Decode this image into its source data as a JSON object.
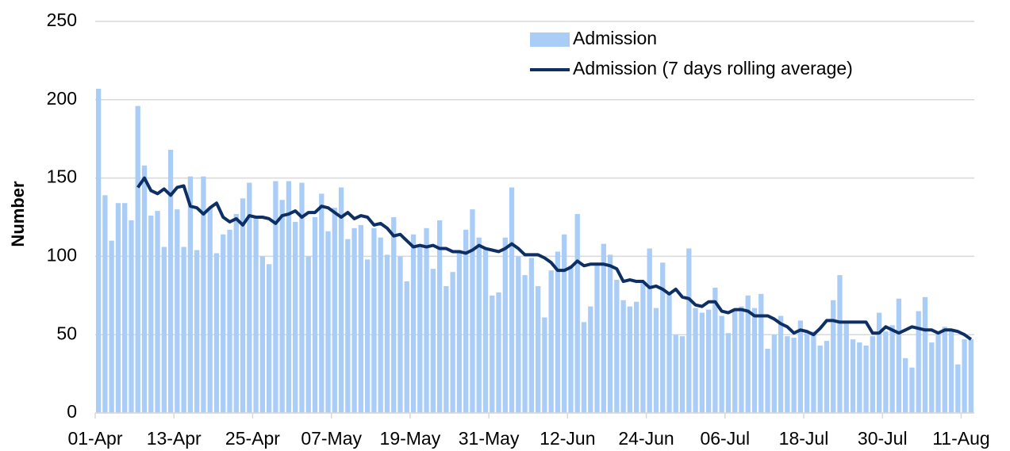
{
  "chart_data": {
    "type": "bar_line",
    "y_label": "Number",
    "categories": [
      "01-Apr",
      null,
      null,
      null,
      null,
      null,
      null,
      null,
      null,
      null,
      null,
      null,
      "13-Apr",
      null,
      null,
      null,
      null,
      null,
      null,
      null,
      null,
      null,
      null,
      null,
      "25-Apr",
      null,
      null,
      null,
      null,
      null,
      null,
      null,
      null,
      null,
      null,
      null,
      "07-May",
      null,
      null,
      null,
      null,
      null,
      null,
      null,
      null,
      null,
      null,
      null,
      "19-May",
      null,
      null,
      null,
      null,
      null,
      null,
      null,
      null,
      null,
      null,
      null,
      "31-May",
      null,
      null,
      null,
      null,
      null,
      null,
      null,
      null,
      null,
      null,
      null,
      "12-Jun",
      null,
      null,
      null,
      null,
      null,
      null,
      null,
      null,
      null,
      null,
      null,
      "24-Jun",
      null,
      null,
      null,
      null,
      null,
      null,
      null,
      null,
      null,
      null,
      null,
      "06-Jul",
      null,
      null,
      null,
      null,
      null,
      null,
      null,
      null,
      null,
      null,
      null,
      "18-Jul",
      null,
      null,
      null,
      null,
      null,
      null,
      null,
      null,
      null,
      null,
      null,
      "30-Jul",
      null,
      null,
      null,
      null,
      null,
      null,
      null,
      null,
      null,
      null,
      null,
      "11-Aug",
      null
    ],
    "series": [
      {
        "name": "Admission",
        "kind": "bar",
        "color": "#a9cdf7",
        "values": [
          207,
          139,
          110,
          134,
          134,
          123,
          196,
          158,
          126,
          129,
          106,
          168,
          130,
          106,
          151,
          104,
          151,
          131,
          102,
          114,
          117,
          127,
          137,
          147,
          125,
          100,
          95,
          148,
          136,
          148,
          122,
          147,
          100,
          125,
          140,
          116,
          131,
          144,
          111,
          118,
          120,
          98,
          118,
          112,
          101,
          125,
          100,
          84,
          114,
          106,
          118,
          92,
          123,
          81,
          90,
          104,
          117,
          130,
          112,
          105,
          75,
          77,
          112,
          144,
          100,
          88,
          99,
          81,
          61,
          91,
          103,
          114,
          94,
          127,
          58,
          68,
          94,
          108,
          101,
          85,
          72,
          68,
          71,
          84,
          105,
          67,
          96,
          76,
          50,
          49,
          105,
          67,
          64,
          66,
          80,
          62,
          51,
          65,
          68,
          75,
          67,
          76,
          41,
          50,
          62,
          49,
          48,
          59,
          51,
          52,
          43,
          46,
          72,
          88,
          57,
          47,
          45,
          43,
          49,
          64,
          52,
          56,
          73,
          35,
          29,
          65,
          74,
          45,
          52,
          55,
          52,
          31,
          47,
          47
        ]
      },
      {
        "name": "Admission (7 days rolling average)",
        "kind": "line",
        "color": "#0d2f63",
        "values": [
          null,
          null,
          null,
          null,
          null,
          null,
          144,
          150,
          142,
          140,
          143,
          139,
          144,
          145,
          132,
          131,
          127,
          131,
          134,
          125,
          122,
          124,
          120,
          126,
          125,
          125,
          124,
          121,
          126,
          127,
          129,
          125,
          128,
          128,
          132,
          131,
          128,
          125,
          128,
          124,
          126,
          125,
          120,
          121,
          118,
          113,
          114,
          110,
          106,
          107,
          106,
          107,
          105,
          105,
          103,
          103,
          102,
          104,
          107,
          105,
          104,
          103,
          105,
          108,
          105,
          101,
          101,
          101,
          99,
          96,
          91,
          91,
          93,
          97,
          94,
          95,
          95,
          95,
          94,
          92,
          84,
          85,
          84,
          84,
          80,
          81,
          79,
          76,
          79,
          74,
          73,
          69,
          68,
          71,
          71,
          65,
          64,
          66,
          66,
          65,
          62,
          62,
          62,
          60,
          57,
          55,
          51,
          53,
          52,
          50,
          54,
          59,
          59,
          58,
          58,
          58,
          58,
          58,
          51,
          51,
          55,
          53,
          51,
          53,
          55,
          54,
          53,
          53,
          51,
          53,
          53,
          52,
          50,
          47
        ]
      }
    ],
    "ylim": [
      0,
      250
    ],
    "yticks": [
      0,
      50,
      100,
      150,
      200,
      250
    ],
    "grid": true
  }
}
